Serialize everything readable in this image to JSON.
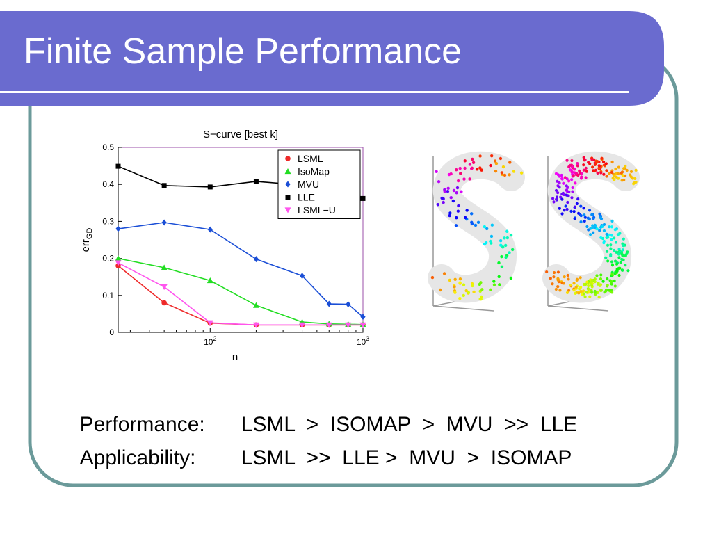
{
  "slide": {
    "title": "Finite Sample Performance",
    "summary": [
      {
        "label": "Performance:",
        "text": "LSML  >  ISOMAP  >  MVU  >>  LLE"
      },
      {
        "label": "Applicability:",
        "text": "LSML  >>  LLE >  MVU  >  ISOMAP"
      }
    ],
    "colors": {
      "title_band": "#6a6bcf",
      "frame_border": "#6b9a9a",
      "underline": "#ffffff"
    }
  },
  "chart_data": {
    "type": "line",
    "title": "S−curve [best k]",
    "xlabel": "n",
    "ylabel": "err",
    "ylabel_sub": "GD",
    "xscale": "log",
    "xlim": [
      25,
      1000
    ],
    "ylim": [
      0,
      0.5
    ],
    "yticks": [
      "0",
      "0.1",
      "0.2",
      "0.3",
      "0.4",
      "0.5"
    ],
    "xticks": [
      {
        "base": "10",
        "exp": "2",
        "value": 100
      },
      {
        "base": "10",
        "exp": "3",
        "value": 1000
      }
    ],
    "x": [
      25,
      50,
      100,
      200,
      400,
      600,
      800,
      1000
    ],
    "legend": {
      "position": "top-right"
    },
    "series": [
      {
        "name": "LSML",
        "color": "#ee2a2a",
        "marker": "circle",
        "values": [
          0.18,
          0.08,
          0.025,
          0.02,
          0.02,
          0.02,
          0.02,
          0.02
        ]
      },
      {
        "name": "IsoMap",
        "color": "#22dd22",
        "marker": "triangle-up",
        "values": [
          0.2,
          0.175,
          0.14,
          0.073,
          0.028,
          0.023,
          0.022,
          0.021
        ]
      },
      {
        "name": "MVU",
        "color": "#1a4ed6",
        "marker": "diamond",
        "values": [
          0.28,
          0.297,
          0.278,
          0.198,
          0.153,
          0.077,
          0.076,
          0.042
        ]
      },
      {
        "name": "LLE",
        "color": "#000000",
        "marker": "square",
        "values": [
          0.449,
          0.397,
          0.393,
          0.408,
          0.398,
          0.394,
          0.384,
          0.362
        ]
      },
      {
        "name": "LSML−U",
        "color": "#ff55ee",
        "marker": "triangle-down",
        "values": [
          0.188,
          0.123,
          0.026,
          0.02,
          0.02,
          0.02,
          0.02,
          0.02
        ]
      }
    ]
  },
  "manifold_figure": {
    "description_colors": [
      "#ffcc00",
      "#33cc33",
      "#00cccc",
      "#2222cc",
      "#cc00cc",
      "#ee1155"
    ]
  }
}
